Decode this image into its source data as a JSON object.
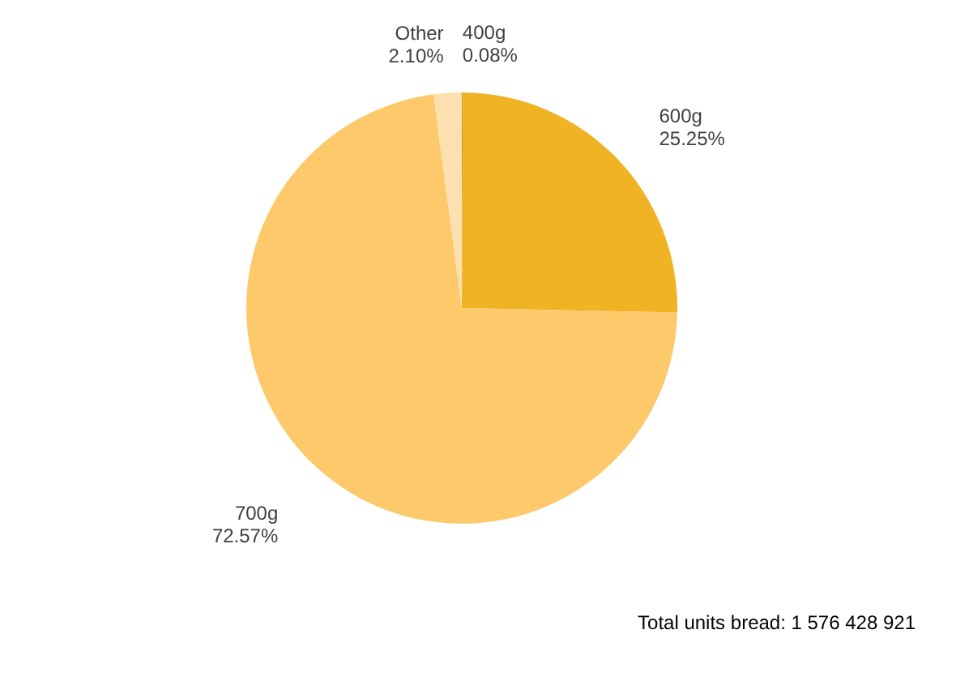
{
  "chart_data": {
    "type": "pie",
    "categories": [
      "400g",
      "600g",
      "700g",
      "Other"
    ],
    "values": [
      0.08,
      25.25,
      72.57,
      2.1
    ],
    "value_labels": [
      "0.08%",
      "25.25%",
      "72.57%",
      "2.10%"
    ],
    "colors": [
      "#c8901a",
      "#f0b323",
      "#fdc96b",
      "#fde0b0"
    ],
    "legend": false,
    "annotations": [
      "Total units bread: 1 576 428 921"
    ]
  }
}
